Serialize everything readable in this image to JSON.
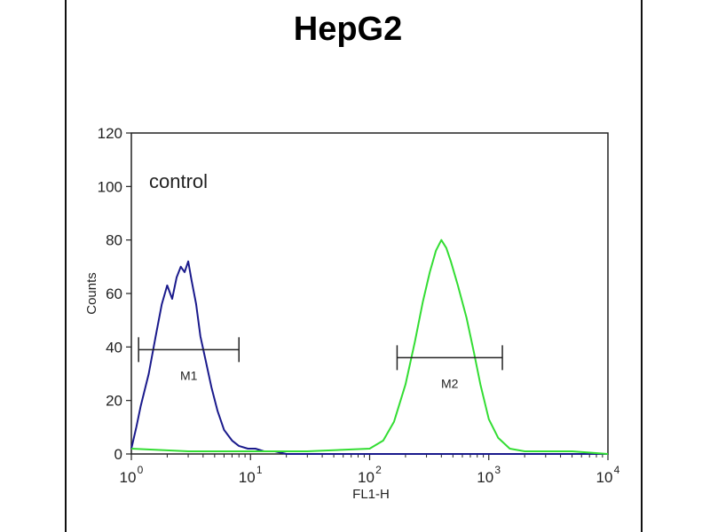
{
  "chart_data": {
    "type": "line",
    "title": "HepG2",
    "xlabel": "FL1-H",
    "ylabel": "Counts",
    "x_scale": "log",
    "xlim": [
      1,
      10000
    ],
    "ylim": [
      0,
      120
    ],
    "y_ticks": [
      "0",
      "20",
      "40",
      "60",
      "80",
      "100",
      "120"
    ],
    "x_tick_base": "10",
    "x_tick_exponents": [
      "0",
      "1",
      "2",
      "3",
      "4"
    ],
    "annotation": "control",
    "grid": false,
    "series": [
      {
        "color": "#1a1a8c",
        "x": [
          1.0,
          1.1,
          1.2,
          1.4,
          1.6,
          1.8,
          2.0,
          2.2,
          2.4,
          2.6,
          2.8,
          3.0,
          3.2,
          3.5,
          3.8,
          4.2,
          4.7,
          5.3,
          6.0,
          7.0,
          8.0,
          9.5,
          11,
          13,
          16,
          20,
          30,
          50,
          100,
          1000,
          10000
        ],
        "y": [
          2,
          10,
          18,
          30,
          44,
          56,
          63,
          58,
          66,
          70,
          68,
          72,
          65,
          56,
          44,
          35,
          25,
          16,
          9,
          5,
          3,
          2,
          2,
          1,
          1,
          0,
          0,
          0,
          0,
          0,
          0
        ]
      },
      {
        "color": "#33dd33",
        "x": [
          1.0,
          3,
          10,
          30,
          100,
          130,
          160,
          200,
          240,
          280,
          320,
          360,
          400,
          440,
          480,
          550,
          650,
          750,
          850,
          1000,
          1200,
          1500,
          2000,
          5000,
          10000
        ],
        "y": [
          2,
          1,
          1,
          1,
          2,
          5,
          12,
          26,
          42,
          57,
          68,
          76,
          80,
          77,
          72,
          63,
          51,
          38,
          26,
          13,
          6,
          2,
          1,
          1,
          0
        ]
      }
    ],
    "markers": [
      {
        "label": "M1",
        "x_start": 1.15,
        "x_end": 8.0,
        "y": 39
      },
      {
        "label": "M2",
        "x_start": 170,
        "x_end": 1300,
        "y": 36
      }
    ]
  }
}
